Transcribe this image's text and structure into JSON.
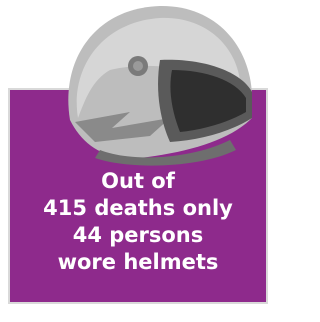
{
  "card": {
    "lines": [
      "Out of",
      "415 deaths only",
      "44 persons",
      "wore helmets"
    ]
  }
}
